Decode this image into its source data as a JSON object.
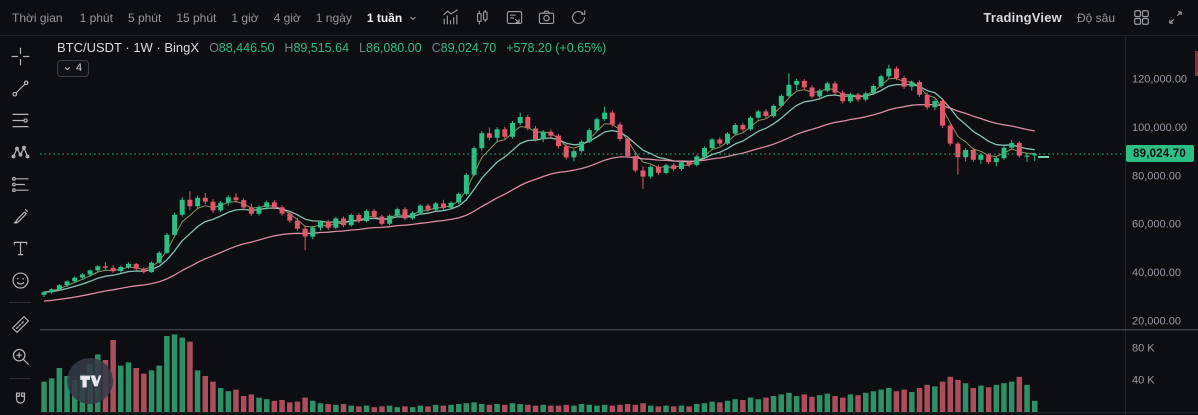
{
  "toolbar": {
    "interval_label": "Thời gian",
    "intervals": [
      {
        "label": "1 phút",
        "active": false
      },
      {
        "label": "5 phút",
        "active": false
      },
      {
        "label": "15 phút",
        "active": false
      },
      {
        "label": "1 giờ",
        "active": false
      },
      {
        "label": "4 giờ",
        "active": false
      },
      {
        "label": "1 ngày",
        "active": false
      },
      {
        "label": "1 tuần",
        "active": true
      }
    ],
    "tool_icons": [
      "indicators-icon",
      "candles-style-icon",
      "compare-icon",
      "screenshot-icon",
      "reset-chart-icon"
    ],
    "brand": "TradingView",
    "depth_label": "Độ sâu"
  },
  "sidebar": {
    "tools": [
      "crosshair-icon",
      "trend-line-icon",
      "fib-retracement-icon",
      "xabcd-pattern-icon",
      "long-position-icon",
      "brush-icon",
      "text-icon",
      "emoji-icon",
      "divider",
      "ruler-icon",
      "zoom-in-icon",
      "divider",
      "magnet-icon"
    ]
  },
  "symbol_header": {
    "title": "BTC/USDT · 1W · BingX",
    "ohlc": {
      "o_label": "O",
      "o": "88,446.50",
      "h_label": "H",
      "h": "89,515.64",
      "l_label": "L",
      "l": "86,080.00",
      "c_label": "C",
      "c": "89,024.70",
      "change": "+578.20 (+0.65%)"
    },
    "indicators_collapsed_count": "4"
  },
  "price_axis": {
    "last_price": "89,024.70",
    "ticks": [
      {
        "label": "120,000.00",
        "value": 120000
      },
      {
        "label": "100,000.00",
        "value": 100000
      },
      {
        "label": "80,000.00",
        "value": 80000
      },
      {
        "label": "60,000.00",
        "value": 60000
      },
      {
        "label": "40,000.00",
        "value": 40000
      },
      {
        "label": "20,000.00",
        "value": 20000
      }
    ]
  },
  "volume_axis": {
    "ticks": [
      {
        "label": "80 K",
        "value": 80
      },
      {
        "label": "40 K",
        "value": 40
      }
    ]
  },
  "watermark": {
    "logo": "TV"
  },
  "chart_data": {
    "type": "candlestick",
    "symbol": "BTC/USDT",
    "interval": "1W",
    "exchange": "BingX",
    "title": "BTC/USDT weekly candles with volume",
    "price_unit_thousands_usdt": true,
    "ylim_price": [
      20000,
      135000
    ],
    "ylim_volume_k": [
      0,
      100
    ],
    "grid": false,
    "last_candle": {
      "o": 88446.5,
      "h": 89515.64,
      "l": 86080.0,
      "c": 89024.7,
      "change": 578.2,
      "change_pct": 0.65
    },
    "overlays": [
      {
        "name": "ema-fast",
        "period": 4,
        "color": "#b9bd7e",
        "width": 1,
        "opacity": 0.75
      },
      {
        "name": "ema-mid",
        "period": 9,
        "color": "#8fc9ba",
        "width": 1.3,
        "opacity": 0.95
      },
      {
        "name": "ema-slow",
        "period": 32,
        "color": "#e593ac",
        "width": 1.3,
        "opacity": 0.95,
        "seed": 28
      }
    ],
    "colors": {
      "up": "#2ebd85",
      "down": "#e0566b",
      "vol_up": "#2f8f67",
      "vol_down": "#ac4d5e",
      "last_price_line": "#2ebd85",
      "badge_bg": "#2ebd85",
      "axis_text": "#959aa3"
    },
    "candles": [
      [
        30.8,
        32.4,
        29.9,
        31.9,
        38
      ],
      [
        31.9,
        33.6,
        31.2,
        33.1,
        42
      ],
      [
        33.1,
        35.2,
        32.6,
        34.8,
        55
      ],
      [
        34.8,
        36.8,
        34.1,
        36.4,
        45
      ],
      [
        36.4,
        38.4,
        35.7,
        37.9,
        40
      ],
      [
        37.9,
        39.8,
        36.9,
        39.2,
        48
      ],
      [
        39.2,
        41.3,
        38.4,
        40.9,
        60
      ],
      [
        40.9,
        43.0,
        40.1,
        42.6,
        72
      ],
      [
        42.6,
        44.3,
        41.2,
        42.0,
        65
      ],
      [
        42.0,
        43.1,
        39.9,
        40.6,
        90
      ],
      [
        40.6,
        42.9,
        40.0,
        42.3,
        58
      ],
      [
        42.3,
        44.2,
        41.6,
        43.6,
        62
      ],
      [
        43.6,
        44.0,
        41.0,
        41.6,
        55
      ],
      [
        41.6,
        42.2,
        39.6,
        40.2,
        48
      ],
      [
        40.2,
        44.6,
        39.9,
        44.1,
        52
      ],
      [
        44.1,
        48.9,
        43.7,
        48.2,
        58
      ],
      [
        48.2,
        56.4,
        47.8,
        55.6,
        95
      ],
      [
        55.6,
        64.8,
        55.0,
        63.9,
        97
      ],
      [
        63.9,
        71.2,
        63.2,
        70.1,
        93
      ],
      [
        70.1,
        73.6,
        65.8,
        67.4,
        88
      ],
      [
        67.4,
        71.8,
        66.2,
        70.9,
        52
      ],
      [
        70.9,
        72.9,
        68.3,
        69.3,
        45
      ],
      [
        69.3,
        70.4,
        64.6,
        65.7,
        38
      ],
      [
        65.7,
        69.6,
        64.9,
        68.9,
        30
      ],
      [
        68.9,
        71.9,
        67.7,
        71.1,
        26
      ],
      [
        71.1,
        72.8,
        68.8,
        69.9,
        28
      ],
      [
        69.9,
        70.8,
        65.9,
        66.9,
        20
      ],
      [
        66.9,
        68.5,
        63.4,
        64.3,
        22
      ],
      [
        64.3,
        67.8,
        63.6,
        67.1,
        18
      ],
      [
        67.1,
        69.7,
        66.0,
        69.0,
        16
      ],
      [
        69.0,
        69.9,
        66.1,
        67.0,
        14
      ],
      [
        67.0,
        67.9,
        63.5,
        64.4,
        15
      ],
      [
        64.4,
        65.3,
        60.6,
        61.5,
        12
      ],
      [
        61.5,
        62.6,
        57.3,
        58.2,
        13
      ],
      [
        58.2,
        59.4,
        49.2,
        54.9,
        18
      ],
      [
        54.9,
        59.3,
        53.8,
        58.6,
        14
      ],
      [
        58.6,
        61.6,
        57.4,
        60.9,
        11
      ],
      [
        60.9,
        61.9,
        57.6,
        58.5,
        10
      ],
      [
        58.5,
        63.1,
        57.9,
        62.4,
        9
      ],
      [
        62.4,
        63.2,
        58.8,
        59.6,
        10
      ],
      [
        59.6,
        64.4,
        59.0,
        63.8,
        8
      ],
      [
        63.8,
        64.6,
        60.5,
        61.3,
        7
      ],
      [
        61.3,
        66.1,
        60.8,
        65.5,
        8
      ],
      [
        65.5,
        66.3,
        62.4,
        63.2,
        6
      ],
      [
        63.2,
        64.0,
        59.4,
        60.2,
        7
      ],
      [
        60.2,
        64.1,
        59.6,
        63.5,
        8
      ],
      [
        63.5,
        66.8,
        62.9,
        66.2,
        6
      ],
      [
        66.2,
        67.0,
        61.6,
        62.4,
        7
      ],
      [
        62.4,
        65.3,
        61.7,
        64.7,
        6
      ],
      [
        64.7,
        68.3,
        64.1,
        67.7,
        8
      ],
      [
        67.7,
        68.5,
        65.2,
        66.0,
        7
      ],
      [
        66.0,
        69.2,
        65.4,
        68.6,
        9
      ],
      [
        68.6,
        70.1,
        65.9,
        66.8,
        8
      ],
      [
        66.8,
        69.4,
        66.1,
        68.9,
        9
      ],
      [
        68.9,
        73.1,
        68.3,
        72.5,
        10
      ],
      [
        72.5,
        81.1,
        71.9,
        80.4,
        11
      ],
      [
        80.4,
        92.2,
        79.8,
        91.4,
        12
      ],
      [
        91.4,
        98.5,
        90.3,
        97.6,
        10
      ],
      [
        97.6,
        99.9,
        94.6,
        95.7,
        9
      ],
      [
        95.7,
        100.1,
        93.8,
        99.2,
        10
      ],
      [
        99.2,
        100.3,
        95.0,
        96.1,
        9
      ],
      [
        96.1,
        102.6,
        95.4,
        101.8,
        11
      ],
      [
        101.8,
        106.1,
        100.9,
        104.3,
        10
      ],
      [
        104.3,
        105.3,
        98.7,
        99.6,
        9
      ],
      [
        99.6,
        100.6,
        94.2,
        95.1,
        8
      ],
      [
        95.1,
        98.9,
        93.9,
        98.2,
        9
      ],
      [
        98.2,
        99.1,
        95.7,
        96.6,
        8
      ],
      [
        96.6,
        97.4,
        91.3,
        92.2,
        8
      ],
      [
        92.2,
        93.1,
        86.7,
        87.6,
        9
      ],
      [
        87.6,
        90.9,
        85.9,
        90.2,
        8
      ],
      [
        90.2,
        94.8,
        89.6,
        94.1,
        10
      ],
      [
        94.1,
        99.6,
        93.5,
        98.9,
        9
      ],
      [
        98.9,
        104.1,
        98.2,
        103.4,
        8
      ],
      [
        103.4,
        108.5,
        102.7,
        106.1,
        9
      ],
      [
        106.1,
        107.0,
        100.3,
        101.2,
        8
      ],
      [
        101.2,
        102.1,
        94.3,
        95.2,
        9
      ],
      [
        95.2,
        96.3,
        87.3,
        88.2,
        10
      ],
      [
        88.2,
        89.3,
        81.3,
        82.2,
        9
      ],
      [
        82.2,
        83.9,
        74.5,
        79.7,
        11
      ],
      [
        79.7,
        84.4,
        78.9,
        83.7,
        8
      ],
      [
        83.7,
        84.5,
        80.3,
        81.2,
        7
      ],
      [
        81.2,
        85.0,
        80.6,
        84.4,
        8
      ],
      [
        84.4,
        85.2,
        81.9,
        82.8,
        7
      ],
      [
        82.8,
        86.2,
        82.1,
        85.6,
        8
      ],
      [
        85.6,
        86.3,
        83.6,
        84.5,
        7
      ],
      [
        84.5,
        88.6,
        83.9,
        88.0,
        10
      ],
      [
        88.0,
        92.1,
        87.4,
        91.5,
        11
      ],
      [
        91.5,
        95.6,
        90.9,
        95.0,
        13
      ],
      [
        95.0,
        95.9,
        92.4,
        93.3,
        12
      ],
      [
        93.3,
        98.1,
        92.7,
        97.4,
        14
      ],
      [
        97.4,
        101.7,
        96.8,
        101.0,
        16
      ],
      [
        101.0,
        101.9,
        98.3,
        99.2,
        15
      ],
      [
        99.2,
        104.6,
        98.6,
        104.0,
        18
      ],
      [
        104.0,
        107.3,
        103.3,
        106.6,
        16
      ],
      [
        106.6,
        107.5,
        103.8,
        104.7,
        18
      ],
      [
        104.7,
        109.6,
        104.1,
        108.9,
        20
      ],
      [
        108.9,
        113.7,
        108.3,
        113.0,
        22
      ],
      [
        113.0,
        122.3,
        112.4,
        117.6,
        24
      ],
      [
        117.6,
        120.1,
        115.4,
        119.2,
        20
      ],
      [
        119.2,
        120.0,
        115.6,
        116.5,
        22
      ],
      [
        116.5,
        117.4,
        111.9,
        112.8,
        19
      ],
      [
        112.8,
        115.9,
        111.4,
        115.2,
        21
      ],
      [
        115.2,
        118.9,
        114.6,
        118.2,
        23
      ],
      [
        118.2,
        119.1,
        113.5,
        114.4,
        20
      ],
      [
        114.4,
        115.3,
        109.9,
        110.8,
        18
      ],
      [
        110.8,
        114.3,
        110.1,
        113.6,
        22
      ],
      [
        113.6,
        114.4,
        110.6,
        111.5,
        21
      ],
      [
        111.5,
        114.8,
        110.8,
        114.1,
        24
      ],
      [
        114.1,
        117.8,
        113.4,
        117.1,
        26
      ],
      [
        117.1,
        121.8,
        116.4,
        121.1,
        28
      ],
      [
        121.1,
        125.9,
        120.3,
        124.3,
        30
      ],
      [
        124.3,
        125.2,
        119.5,
        120.4,
        26
      ],
      [
        120.4,
        121.3,
        115.9,
        116.8,
        28
      ],
      [
        116.8,
        119.4,
        115.2,
        118.7,
        25
      ],
      [
        118.7,
        119.5,
        112.6,
        113.5,
        30
      ],
      [
        113.5,
        114.4,
        107.4,
        108.3,
        34
      ],
      [
        108.3,
        111.6,
        107.1,
        110.9,
        32
      ],
      [
        110.9,
        111.7,
        99.8,
        100.7,
        38
      ],
      [
        100.7,
        101.5,
        92.4,
        93.3,
        44
      ],
      [
        93.3,
        94.1,
        80.5,
        87.7,
        40
      ],
      [
        87.7,
        91.4,
        85.9,
        90.7,
        36
      ],
      [
        90.7,
        91.5,
        85.7,
        86.6,
        30
      ],
      [
        86.6,
        89.3,
        84.9,
        88.7,
        33
      ],
      [
        88.7,
        89.4,
        84.8,
        85.7,
        31
      ],
      [
        85.7,
        88.0,
        83.9,
        87.3,
        34
      ],
      [
        87.3,
        92.2,
        86.7,
        91.6,
        36
      ],
      [
        91.6,
        94.9,
        91.0,
        93.6,
        38
      ],
      [
        93.6,
        94.3,
        87.5,
        88.3,
        44
      ],
      [
        88.3,
        89.1,
        85.7,
        88.4,
        34
      ],
      [
        88.45,
        89.52,
        86.08,
        89.02,
        14
      ]
    ]
  }
}
